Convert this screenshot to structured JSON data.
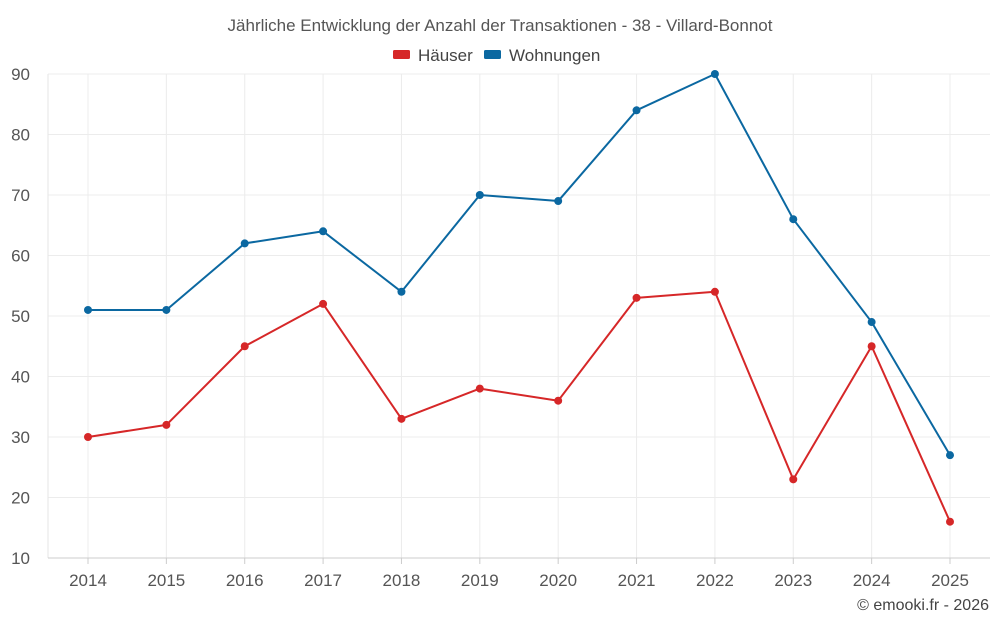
{
  "chart_data": {
    "type": "line",
    "title": "Jährliche Entwicklung der Anzahl der Transaktionen - 38 - Villard-Bonnot",
    "categories": [
      "2014",
      "2015",
      "2016",
      "2017",
      "2018",
      "2019",
      "2020",
      "2021",
      "2022",
      "2023",
      "2024",
      "2025"
    ],
    "series": [
      {
        "name": "Häuser",
        "color": "#d62728",
        "values": [
          30,
          32,
          45,
          52,
          33,
          38,
          36,
          53,
          54,
          23,
          45,
          16
        ]
      },
      {
        "name": "Wohnungen",
        "color": "#0b68a1",
        "values": [
          51,
          51,
          62,
          64,
          54,
          70,
          69,
          84,
          90,
          66,
          49,
          27
        ]
      }
    ],
    "yticks": [
      10,
      20,
      30,
      40,
      50,
      60,
      70,
      80,
      90
    ],
    "ylim": [
      10,
      90
    ],
    "xlabel": "",
    "ylabel": "",
    "grid": true,
    "legend_position": "top-center"
  },
  "credit": "© emooki.fr - 2026"
}
